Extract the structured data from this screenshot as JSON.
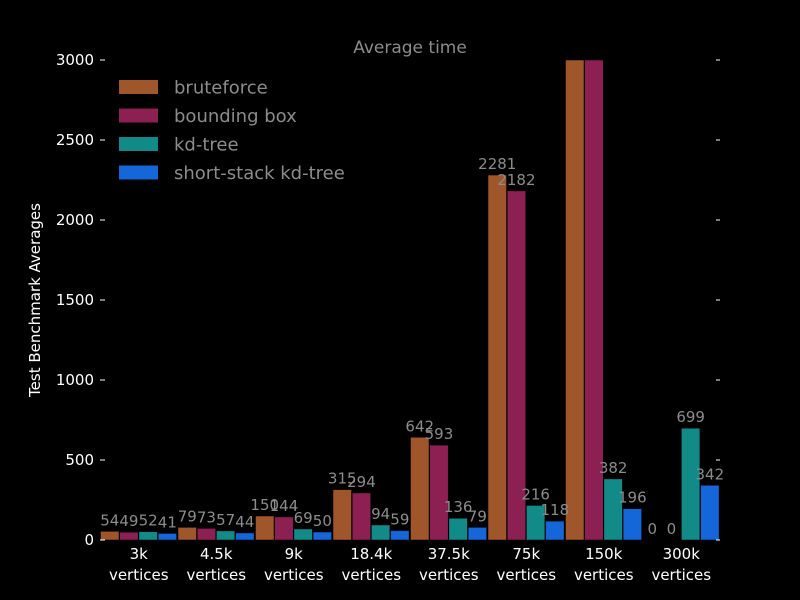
{
  "chart_data": {
    "type": "bar",
    "title": "Average time",
    "xlabel": "",
    "ylabel": "Test Benchmark Averages",
    "ylim": [
      0,
      3000
    ],
    "yticks": [
      "0",
      "500",
      "1000",
      "1500",
      "2000",
      "2500",
      "3000"
    ],
    "grid": false,
    "legend_position": "top-left",
    "categories": [
      [
        "3k",
        "vertices"
      ],
      [
        "4.5k",
        "vertices"
      ],
      [
        "9k",
        "vertices"
      ],
      [
        "18.4k",
        "vertices"
      ],
      [
        "37.5k",
        "vertices"
      ],
      [
        "75k",
        "vertices"
      ],
      [
        "150k",
        "vertices"
      ],
      [
        "300k",
        "vertices"
      ]
    ],
    "series": [
      {
        "name": "bruteforce",
        "color": "#a0562b",
        "values": [
          54,
          79,
          150,
          315,
          642,
          2281,
          3000,
          0
        ],
        "labels": [
          "54",
          "79",
          "150",
          "315",
          "642",
          "2281",
          "",
          "0"
        ]
      },
      {
        "name": "bounding box",
        "color": "#8c2052",
        "values": [
          49,
          73,
          144,
          294,
          593,
          2182,
          3000,
          0
        ],
        "labels": [
          "49",
          "73",
          "144",
          "294",
          "593",
          "2182",
          "",
          "0"
        ]
      },
      {
        "name": "kd-tree",
        "color": "#118a88",
        "values": [
          52,
          57,
          69,
          94,
          136,
          216,
          382,
          699
        ],
        "labels": [
          "52",
          "57",
          "69",
          "94",
          "136",
          "216",
          "382",
          "699"
        ]
      },
      {
        "name": "short-stack kd-tree",
        "color": "#1566d8",
        "values": [
          41,
          44,
          50,
          59,
          79,
          118,
          196,
          342
        ],
        "labels": [
          "41",
          "44",
          "50",
          "59",
          "79",
          "118",
          "196",
          "342"
        ]
      }
    ]
  }
}
